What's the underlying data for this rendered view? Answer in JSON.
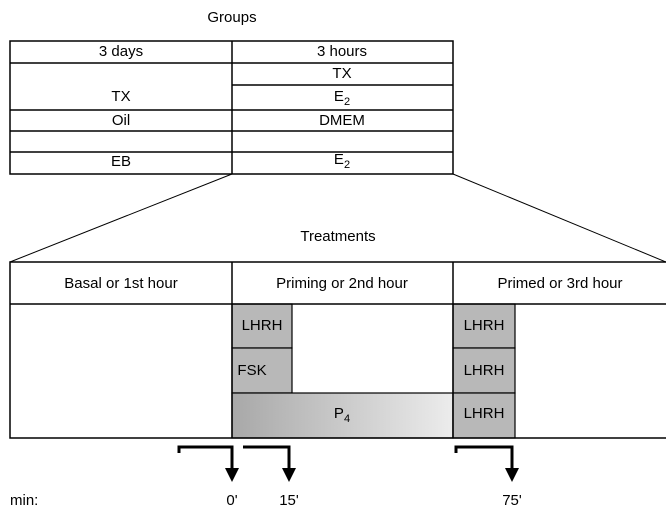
{
  "groups": {
    "title": "Groups",
    "header": [
      "3 days",
      "3 hours"
    ],
    "rows": [
      {
        "left": "TX",
        "right": [
          "TX",
          {
            "base": "E",
            "sub": "2"
          }
        ]
      },
      {
        "left": "Oil",
        "right": [
          "DMEM"
        ]
      },
      {
        "left": "EB",
        "right": [
          {
            "base": "E",
            "sub": "2"
          }
        ]
      }
    ]
  },
  "treatments": {
    "title": "Treatments",
    "header": [
      "Basal or 1st hour",
      "Priming or 2nd hour",
      "Primed or 3rd hour"
    ],
    "priming": [
      "LHRH",
      "FSK",
      {
        "base": "P",
        "sub": "4"
      }
    ],
    "primed": [
      "LHRH",
      "LHRH",
      "LHRH"
    ]
  },
  "timeline": {
    "unit": "min:",
    "marks": [
      "0'",
      "15'",
      "75'"
    ]
  }
}
